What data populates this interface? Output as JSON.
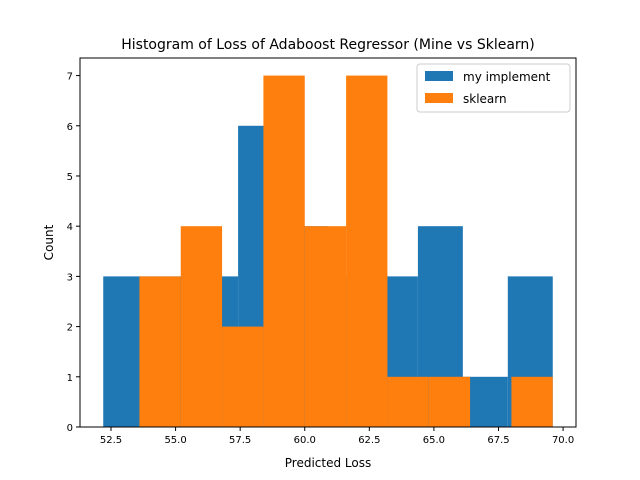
{
  "chart_data": {
    "type": "bar",
    "title": "Histogram of Loss of Adaboost Regressor (Mine vs Sklearn)",
    "xlabel": "Predicted Loss",
    "ylabel": "Count",
    "xlim": [
      51.3,
      70.5
    ],
    "ylim": [
      0,
      7.35
    ],
    "xticks": [
      52.5,
      55.0,
      57.5,
      60.0,
      62.5,
      65.0,
      67.5,
      70.0
    ],
    "xtick_labels": [
      "52.5",
      "55.0",
      "57.5",
      "60.0",
      "62.5",
      "65.0",
      "67.5",
      "70.0"
    ],
    "yticks": [
      0,
      1,
      2,
      3,
      4,
      5,
      6,
      7
    ],
    "ytick_labels": [
      "0",
      "1",
      "2",
      "3",
      "4",
      "5",
      "6",
      "7"
    ],
    "legend_position": "top-right",
    "grid": false,
    "series": [
      {
        "name": "my implement",
        "color": "#1f77b4",
        "bin_edges": [
          52.2,
          53.94,
          55.68,
          57.42,
          59.16,
          60.9,
          62.64,
          64.38,
          66.12,
          67.86,
          69.6
        ],
        "counts": [
          3,
          3,
          3,
          6,
          4,
          3,
          3,
          4,
          1,
          3
        ]
      },
      {
        "name": "sklearn",
        "color": "#ff7f0e",
        "bin_edges": [
          53.6,
          55.2,
          56.8,
          58.4,
          60.0,
          61.6,
          63.2,
          64.8,
          66.4,
          68.0,
          69.6
        ],
        "counts": [
          3,
          4,
          2,
          7,
          4,
          7,
          1,
          1,
          0,
          1
        ]
      }
    ]
  }
}
